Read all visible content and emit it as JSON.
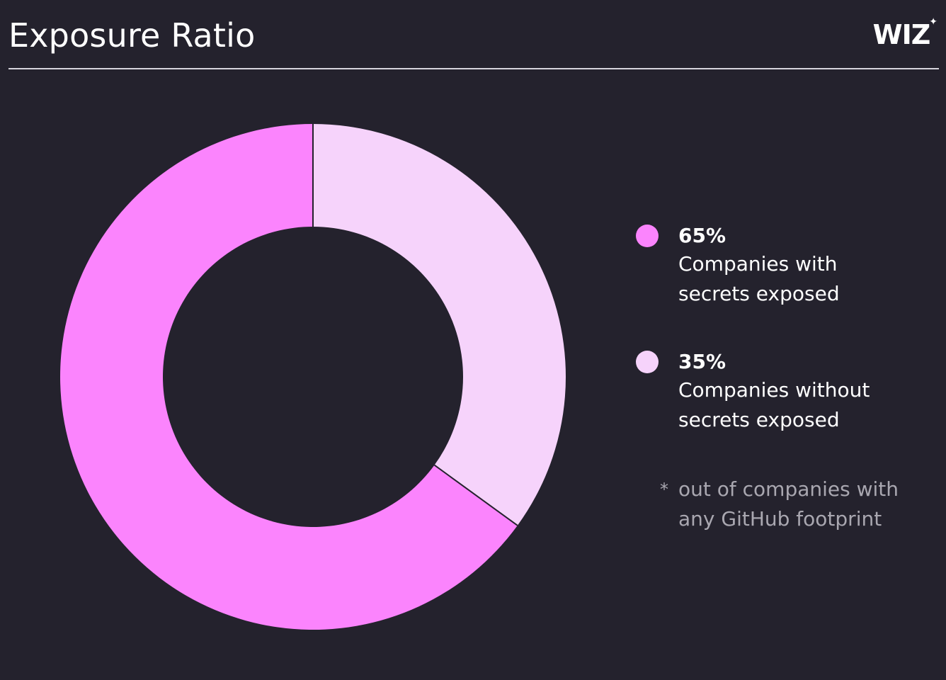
{
  "header": {
    "title": "Exposure Ratio",
    "logo": "WIZ",
    "logo_mark": "✦"
  },
  "colors": {
    "background": "#24222d",
    "with_secrets": "#fb84fd",
    "without_secrets": "#f6d3fb",
    "divider": "#d6d4dc"
  },
  "chart_data": {
    "type": "pie",
    "donut": true,
    "start": "top",
    "direction": "clockwise",
    "series": [
      {
        "name": "Companies without secrets exposed",
        "value": 35,
        "label": "35%",
        "color": "#f6d3fb"
      },
      {
        "name": "Companies with secrets exposed",
        "value": 65,
        "label": "65%",
        "color": "#fb84fd"
      }
    ],
    "legend": "right"
  },
  "legend": [
    {
      "value": "65%",
      "label": "Companies with\nsecrets exposed",
      "color": "#fb84fd"
    },
    {
      "value": "35%",
      "label": "Companies without\nsecrets exposed",
      "color": "#f6d3fb"
    }
  ],
  "footnote": {
    "marker": "*",
    "text": "out of companies with\nany GitHub footprint"
  }
}
